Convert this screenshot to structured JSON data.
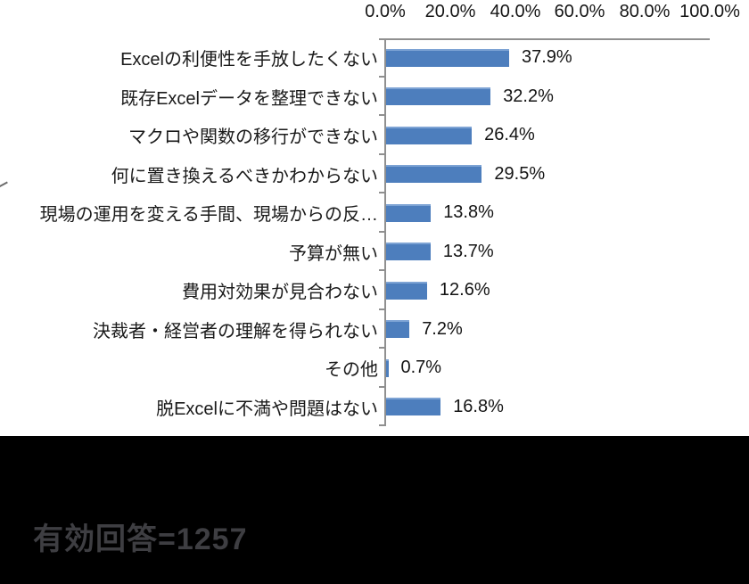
{
  "chart_data": {
    "type": "bar",
    "orientation": "horizontal",
    "title": "",
    "categories": [
      "Excelの利便性を手放したくない",
      "既存Excelデータを整理できない",
      "マクロや関数の移行ができない",
      "何に置き換えるべきかわからない",
      "現場の運用を変える手間、現場からの反…",
      "予算が無い",
      "費用対効果が見合わない",
      "決裁者・経営者の理解を得られない",
      "その他",
      "脱Excelに不満や問題はない"
    ],
    "values": [
      37.9,
      32.2,
      26.4,
      29.5,
      13.8,
      13.7,
      12.6,
      7.2,
      0.7,
      16.8
    ],
    "value_labels": [
      "37.9%",
      "32.2%",
      "26.4%",
      "29.5%",
      "13.8%",
      "13.7%",
      "12.6%",
      "7.2%",
      "0.7%",
      "16.8%"
    ],
    "x_ticks": [
      "0.0%",
      "20.0%",
      "40.0%",
      "60.0%",
      "80.0%",
      "100.0%"
    ],
    "xlim": [
      0,
      100
    ],
    "xlabel": "",
    "ylabel": "",
    "grid": false,
    "legend": "none",
    "bar_color": "#4d7ebd",
    "bar_highlight_color": "#7da3d4",
    "axis_color": "#909090"
  },
  "footer": {
    "text": "有効回答=1257",
    "background_color": "#000000",
    "text_color": "#3e3e42"
  }
}
